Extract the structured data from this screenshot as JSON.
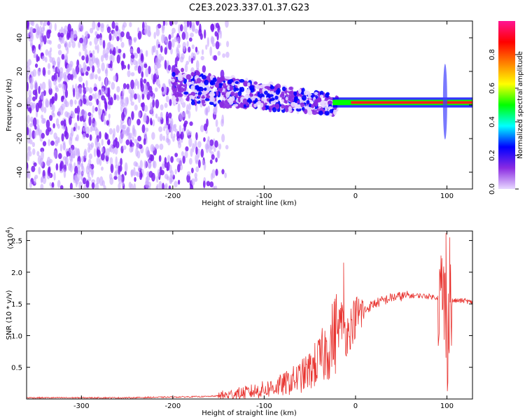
{
  "title": "C2E3.2023.337.01.37.G23",
  "chart_data": [
    {
      "type": "heatmap",
      "xlabel": "Height of straight line (km)",
      "ylabel": "Frequency (Hz)",
      "xlim": [
        -360,
        128
      ],
      "ylim": [
        -50,
        50
      ],
      "xticks": [
        -300,
        -200,
        -100,
        0,
        100
      ],
      "xtick_labels": [
        "-300",
        "-200",
        "-100",
        "0",
        "100"
      ],
      "yticks": [
        -40,
        -20,
        0,
        20,
        40
      ],
      "ytick_labels": [
        "-40",
        "-20",
        "0",
        "20",
        "40"
      ],
      "colorbar": {
        "label": "Normalized spectral amplitude",
        "range": [
          0,
          1
        ],
        "ticks": [
          0.0,
          0.2,
          0.4,
          0.6,
          0.8
        ],
        "tick_labels": [
          "0.0",
          "0.2",
          "0.4",
          "0.6",
          "0.8"
        ],
        "colors": [
          "#e8d8ff",
          "#8a2be2",
          "#0000ff",
          "#00ffff",
          "#00ff00",
          "#ffff00",
          "#ff8000",
          "#ff0000",
          "#ff1493"
        ]
      },
      "features": [
        {
          "name": "broadband noise",
          "x_range": [
            -360,
            -140
          ],
          "freq_range": [
            -50,
            50
          ],
          "amplitude": 0.1
        },
        {
          "name": "wide band signal",
          "x_range": [
            -200,
            -20
          ],
          "freq_center": [
            12,
            0
          ],
          "halfwidth": [
            10,
            6
          ],
          "amplitude": 0.3
        },
        {
          "name": "narrow line",
          "x_range": [
            -25,
            128
          ],
          "freq_center": 1.5,
          "amplitude": 0.9
        },
        {
          "name": "spike",
          "x": 98,
          "freq_range": [
            -20,
            25
          ],
          "amplitude": 0.2
        }
      ],
      "grid": false
    },
    {
      "type": "line",
      "xlabel": "Height of straight line (km)",
      "ylabel": "SNR (10 * v/v)",
      "yscale_label": "(x10",
      "yscale_exponent": "4",
      "xlim": [
        -360,
        128
      ],
      "ylim": [
        0,
        2.65
      ],
      "xticks": [
        -300,
        -200,
        -100,
        0,
        100
      ],
      "xtick_labels": [
        "-300",
        "-200",
        "-100",
        "0",
        "100"
      ],
      "yticks": [
        0.5,
        1.0,
        1.5,
        2.0,
        2.5
      ],
      "ytick_labels": [
        "0.5",
        "1.0",
        "1.5",
        "2.0",
        "2.5"
      ],
      "color": "#e8332f",
      "series": [
        {
          "x": [
            -360,
            -300,
            -250,
            -200,
            -160,
            -140,
            -120,
            -100,
            -80,
            -60,
            -50,
            -40,
            -30,
            -20,
            -15,
            -10,
            -5,
            0,
            10,
            20,
            30,
            40,
            50,
            60,
            70,
            80,
            90,
            95,
            98,
            100,
            102,
            105,
            110,
            120,
            128
          ],
          "values": [
            0.02,
            0.02,
            0.02,
            0.03,
            0.04,
            0.06,
            0.1,
            0.15,
            0.22,
            0.35,
            0.45,
            0.6,
            0.8,
            1.1,
            1.25,
            1.0,
            1.15,
            1.3,
            1.4,
            1.5,
            1.55,
            1.6,
            1.62,
            1.63,
            1.63,
            1.62,
            1.6,
            1.6,
            1.5,
            0.6,
            1.6,
            1.55,
            1.55,
            1.55,
            1.52
          ]
        }
      ],
      "peaks": [
        {
          "x": -13,
          "y": 2.15
        },
        {
          "x": 99,
          "y": 2.62
        },
        {
          "x": 103,
          "y": 2.55
        }
      ],
      "grid": false
    }
  ]
}
